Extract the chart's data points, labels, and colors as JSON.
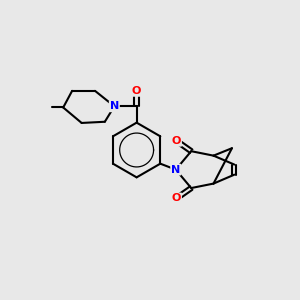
{
  "bg_color": "#e8e8e8",
  "atom_colors": {
    "N": "#0000ff",
    "O": "#ff0000",
    "C": "#000000"
  },
  "line_color": "#000000",
  "line_width": 1.5,
  "figsize": [
    3.0,
    3.0
  ],
  "dpi": 100,
  "xlim": [
    0,
    10
  ],
  "ylim": [
    0,
    10
  ]
}
